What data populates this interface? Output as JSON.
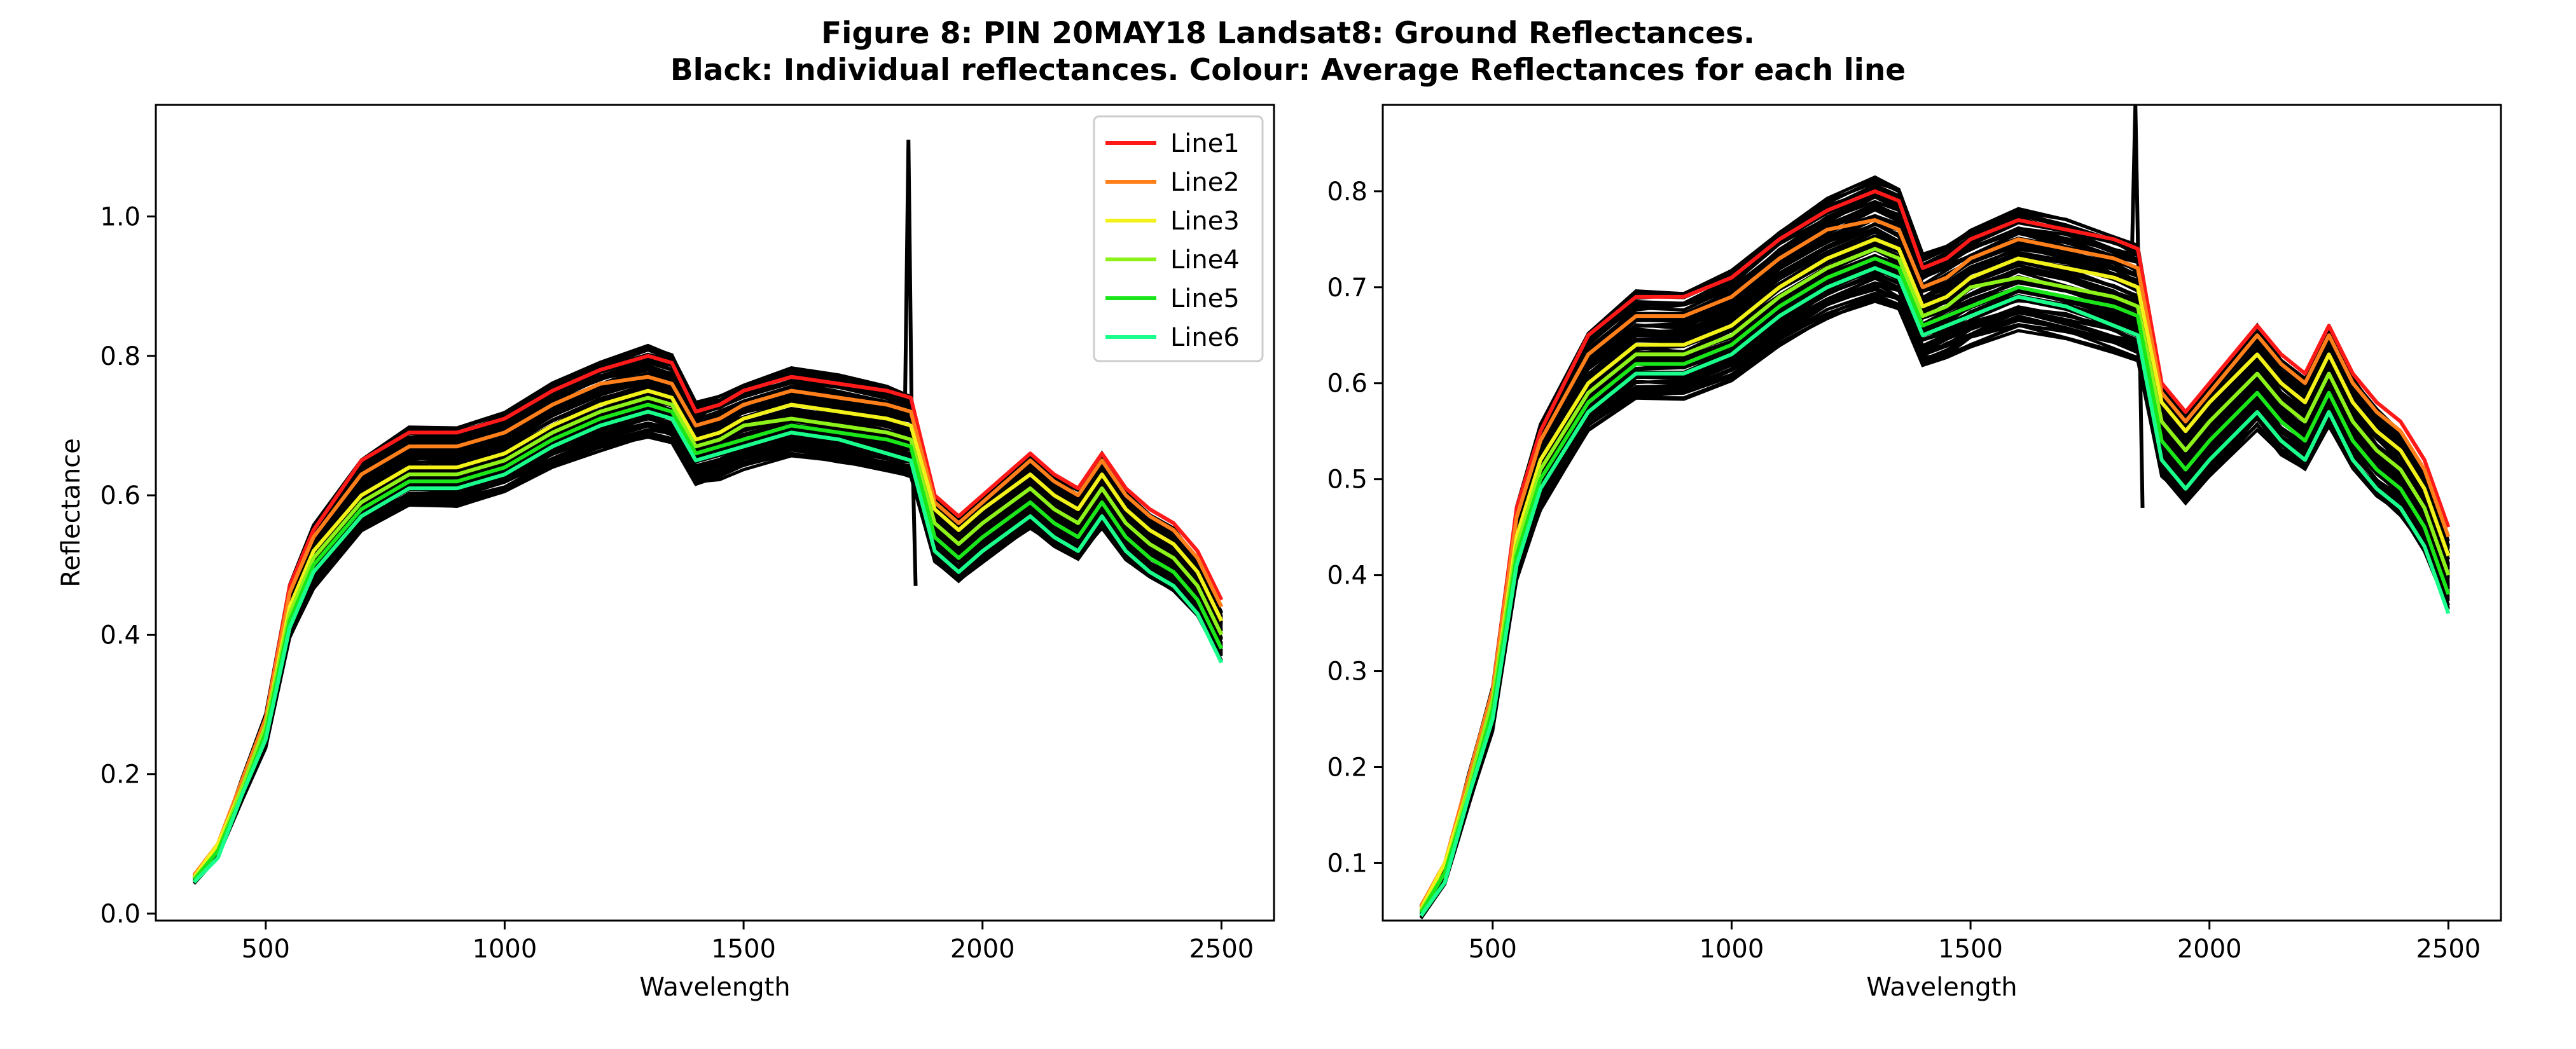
{
  "title_line1": "Figure 8: PIN 20MAY18  Landsat8: Ground Reflectances.",
  "title_line2": "Black: Individual reflectances. Colour: Average Reflectances for each line",
  "chart_data": [
    {
      "type": "line",
      "xlabel": "Wavelength",
      "ylabel": "Reflectance",
      "xlim": [
        270,
        2610
      ],
      "ylim": [
        -0.01,
        1.16
      ],
      "xticks": [
        500,
        1000,
        1500,
        2000,
        2500
      ],
      "yticks": [
        0.0,
        0.2,
        0.4,
        0.6,
        0.8,
        1.0
      ],
      "ytick_labels": [
        "0.0",
        "0.2",
        "0.4",
        "0.6",
        "0.8",
        "1.0"
      ],
      "legend": "top-right",
      "grid": false,
      "individual_color": "#000000",
      "x": [
        350,
        400,
        450,
        500,
        550,
        600,
        700,
        800,
        900,
        1000,
        1100,
        1200,
        1300,
        1350,
        1400,
        1450,
        1500,
        1600,
        1700,
        1800,
        1850,
        1900,
        1950,
        2000,
        2100,
        2150,
        2200,
        2250,
        2300,
        2350,
        2400,
        2450,
        2500
      ],
      "series": [
        {
          "name": "Line1",
          "color": "#ff1a1a",
          "values": [
            0.055,
            0.1,
            0.19,
            0.28,
            0.47,
            0.55,
            0.65,
            0.69,
            0.69,
            0.71,
            0.75,
            0.78,
            0.8,
            0.79,
            0.72,
            0.73,
            0.75,
            0.77,
            0.76,
            0.75,
            0.74,
            0.6,
            0.57,
            0.6,
            0.66,
            0.63,
            0.61,
            0.66,
            0.61,
            0.58,
            0.56,
            0.52,
            0.45
          ]
        },
        {
          "name": "Line2",
          "color": "#ff7f1a",
          "values": [
            0.055,
            0.1,
            0.19,
            0.28,
            0.46,
            0.54,
            0.63,
            0.67,
            0.67,
            0.69,
            0.73,
            0.76,
            0.77,
            0.76,
            0.7,
            0.71,
            0.73,
            0.75,
            0.74,
            0.73,
            0.72,
            0.59,
            0.56,
            0.59,
            0.65,
            0.62,
            0.6,
            0.65,
            0.6,
            0.57,
            0.55,
            0.51,
            0.44
          ]
        },
        {
          "name": "Line3",
          "color": "#f2f21a",
          "values": [
            0.052,
            0.1,
            0.18,
            0.27,
            0.44,
            0.52,
            0.6,
            0.64,
            0.64,
            0.66,
            0.7,
            0.73,
            0.75,
            0.74,
            0.68,
            0.69,
            0.71,
            0.73,
            0.72,
            0.71,
            0.7,
            0.58,
            0.55,
            0.58,
            0.63,
            0.6,
            0.58,
            0.63,
            0.58,
            0.55,
            0.53,
            0.49,
            0.42
          ]
        },
        {
          "name": "Line4",
          "color": "#8cf21a",
          "values": [
            0.05,
            0.09,
            0.18,
            0.27,
            0.43,
            0.51,
            0.59,
            0.63,
            0.63,
            0.65,
            0.69,
            0.72,
            0.74,
            0.73,
            0.67,
            0.68,
            0.7,
            0.71,
            0.7,
            0.69,
            0.68,
            0.56,
            0.53,
            0.56,
            0.61,
            0.58,
            0.56,
            0.61,
            0.56,
            0.53,
            0.51,
            0.47,
            0.4
          ]
        },
        {
          "name": "Line5",
          "color": "#1ae61a",
          "values": [
            0.048,
            0.09,
            0.17,
            0.26,
            0.42,
            0.5,
            0.58,
            0.62,
            0.62,
            0.64,
            0.68,
            0.71,
            0.73,
            0.72,
            0.66,
            0.67,
            0.68,
            0.7,
            0.69,
            0.68,
            0.67,
            0.54,
            0.51,
            0.54,
            0.59,
            0.56,
            0.54,
            0.59,
            0.54,
            0.51,
            0.49,
            0.45,
            0.38
          ]
        },
        {
          "name": "Line6",
          "color": "#1aff8c",
          "values": [
            0.045,
            0.08,
            0.17,
            0.25,
            0.41,
            0.49,
            0.57,
            0.61,
            0.61,
            0.63,
            0.67,
            0.7,
            0.72,
            0.71,
            0.65,
            0.66,
            0.67,
            0.69,
            0.68,
            0.66,
            0.65,
            0.52,
            0.49,
            0.52,
            0.57,
            0.54,
            0.52,
            0.57,
            0.52,
            0.49,
            0.47,
            0.43,
            0.36
          ]
        }
      ]
    },
    {
      "type": "line",
      "xlabel": "Wavelength",
      "ylabel": "",
      "xlim": [
        270,
        2610
      ],
      "ylim": [
        0.04,
        0.89
      ],
      "xticks": [
        500,
        1000,
        1500,
        2000,
        2500
      ],
      "yticks": [
        0.1,
        0.2,
        0.3,
        0.4,
        0.5,
        0.6,
        0.7,
        0.8
      ],
      "ytick_labels": [
        "0.1",
        "0.2",
        "0.3",
        "0.4",
        "0.5",
        "0.6",
        "0.7",
        "0.8"
      ],
      "legend": "none",
      "grid": false,
      "individual_color": "#000000",
      "x": [
        350,
        400,
        450,
        500,
        550,
        600,
        700,
        800,
        900,
        1000,
        1100,
        1200,
        1300,
        1350,
        1400,
        1450,
        1500,
        1600,
        1700,
        1800,
        1850,
        1900,
        1950,
        2000,
        2100,
        2150,
        2200,
        2250,
        2300,
        2350,
        2400,
        2450,
        2500
      ],
      "series": [
        {
          "name": "Line1",
          "color": "#ff1a1a",
          "values": [
            0.055,
            0.1,
            0.19,
            0.28,
            0.47,
            0.55,
            0.65,
            0.69,
            0.69,
            0.71,
            0.75,
            0.78,
            0.8,
            0.79,
            0.72,
            0.73,
            0.75,
            0.77,
            0.76,
            0.75,
            0.74,
            0.6,
            0.57,
            0.6,
            0.66,
            0.63,
            0.61,
            0.66,
            0.61,
            0.58,
            0.56,
            0.52,
            0.45
          ]
        },
        {
          "name": "Line2",
          "color": "#ff7f1a",
          "values": [
            0.055,
            0.1,
            0.19,
            0.28,
            0.46,
            0.54,
            0.63,
            0.67,
            0.67,
            0.69,
            0.73,
            0.76,
            0.77,
            0.76,
            0.7,
            0.71,
            0.73,
            0.75,
            0.74,
            0.73,
            0.72,
            0.59,
            0.56,
            0.59,
            0.65,
            0.62,
            0.6,
            0.65,
            0.6,
            0.57,
            0.55,
            0.51,
            0.44
          ]
        },
        {
          "name": "Line3",
          "color": "#f2f21a",
          "values": [
            0.052,
            0.1,
            0.18,
            0.27,
            0.44,
            0.52,
            0.6,
            0.64,
            0.64,
            0.66,
            0.7,
            0.73,
            0.75,
            0.74,
            0.68,
            0.69,
            0.71,
            0.73,
            0.72,
            0.71,
            0.7,
            0.58,
            0.55,
            0.58,
            0.63,
            0.6,
            0.58,
            0.63,
            0.58,
            0.55,
            0.53,
            0.49,
            0.42
          ]
        },
        {
          "name": "Line4",
          "color": "#8cf21a",
          "values": [
            0.05,
            0.09,
            0.18,
            0.27,
            0.43,
            0.51,
            0.59,
            0.63,
            0.63,
            0.65,
            0.69,
            0.72,
            0.74,
            0.73,
            0.67,
            0.68,
            0.7,
            0.71,
            0.7,
            0.69,
            0.68,
            0.56,
            0.53,
            0.56,
            0.61,
            0.58,
            0.56,
            0.61,
            0.56,
            0.53,
            0.51,
            0.47,
            0.4
          ]
        },
        {
          "name": "Line5",
          "color": "#1ae61a",
          "values": [
            0.048,
            0.09,
            0.17,
            0.26,
            0.42,
            0.5,
            0.58,
            0.62,
            0.62,
            0.64,
            0.68,
            0.71,
            0.73,
            0.72,
            0.66,
            0.67,
            0.68,
            0.7,
            0.69,
            0.68,
            0.67,
            0.54,
            0.51,
            0.54,
            0.59,
            0.56,
            0.54,
            0.59,
            0.54,
            0.51,
            0.49,
            0.45,
            0.38
          ]
        },
        {
          "name": "Line6",
          "color": "#1aff8c",
          "values": [
            0.045,
            0.08,
            0.17,
            0.25,
            0.41,
            0.49,
            0.57,
            0.61,
            0.61,
            0.63,
            0.67,
            0.7,
            0.72,
            0.71,
            0.65,
            0.66,
            0.67,
            0.69,
            0.68,
            0.66,
            0.65,
            0.52,
            0.49,
            0.52,
            0.57,
            0.54,
            0.52,
            0.57,
            0.52,
            0.49,
            0.47,
            0.43,
            0.36
          ]
        }
      ]
    }
  ]
}
